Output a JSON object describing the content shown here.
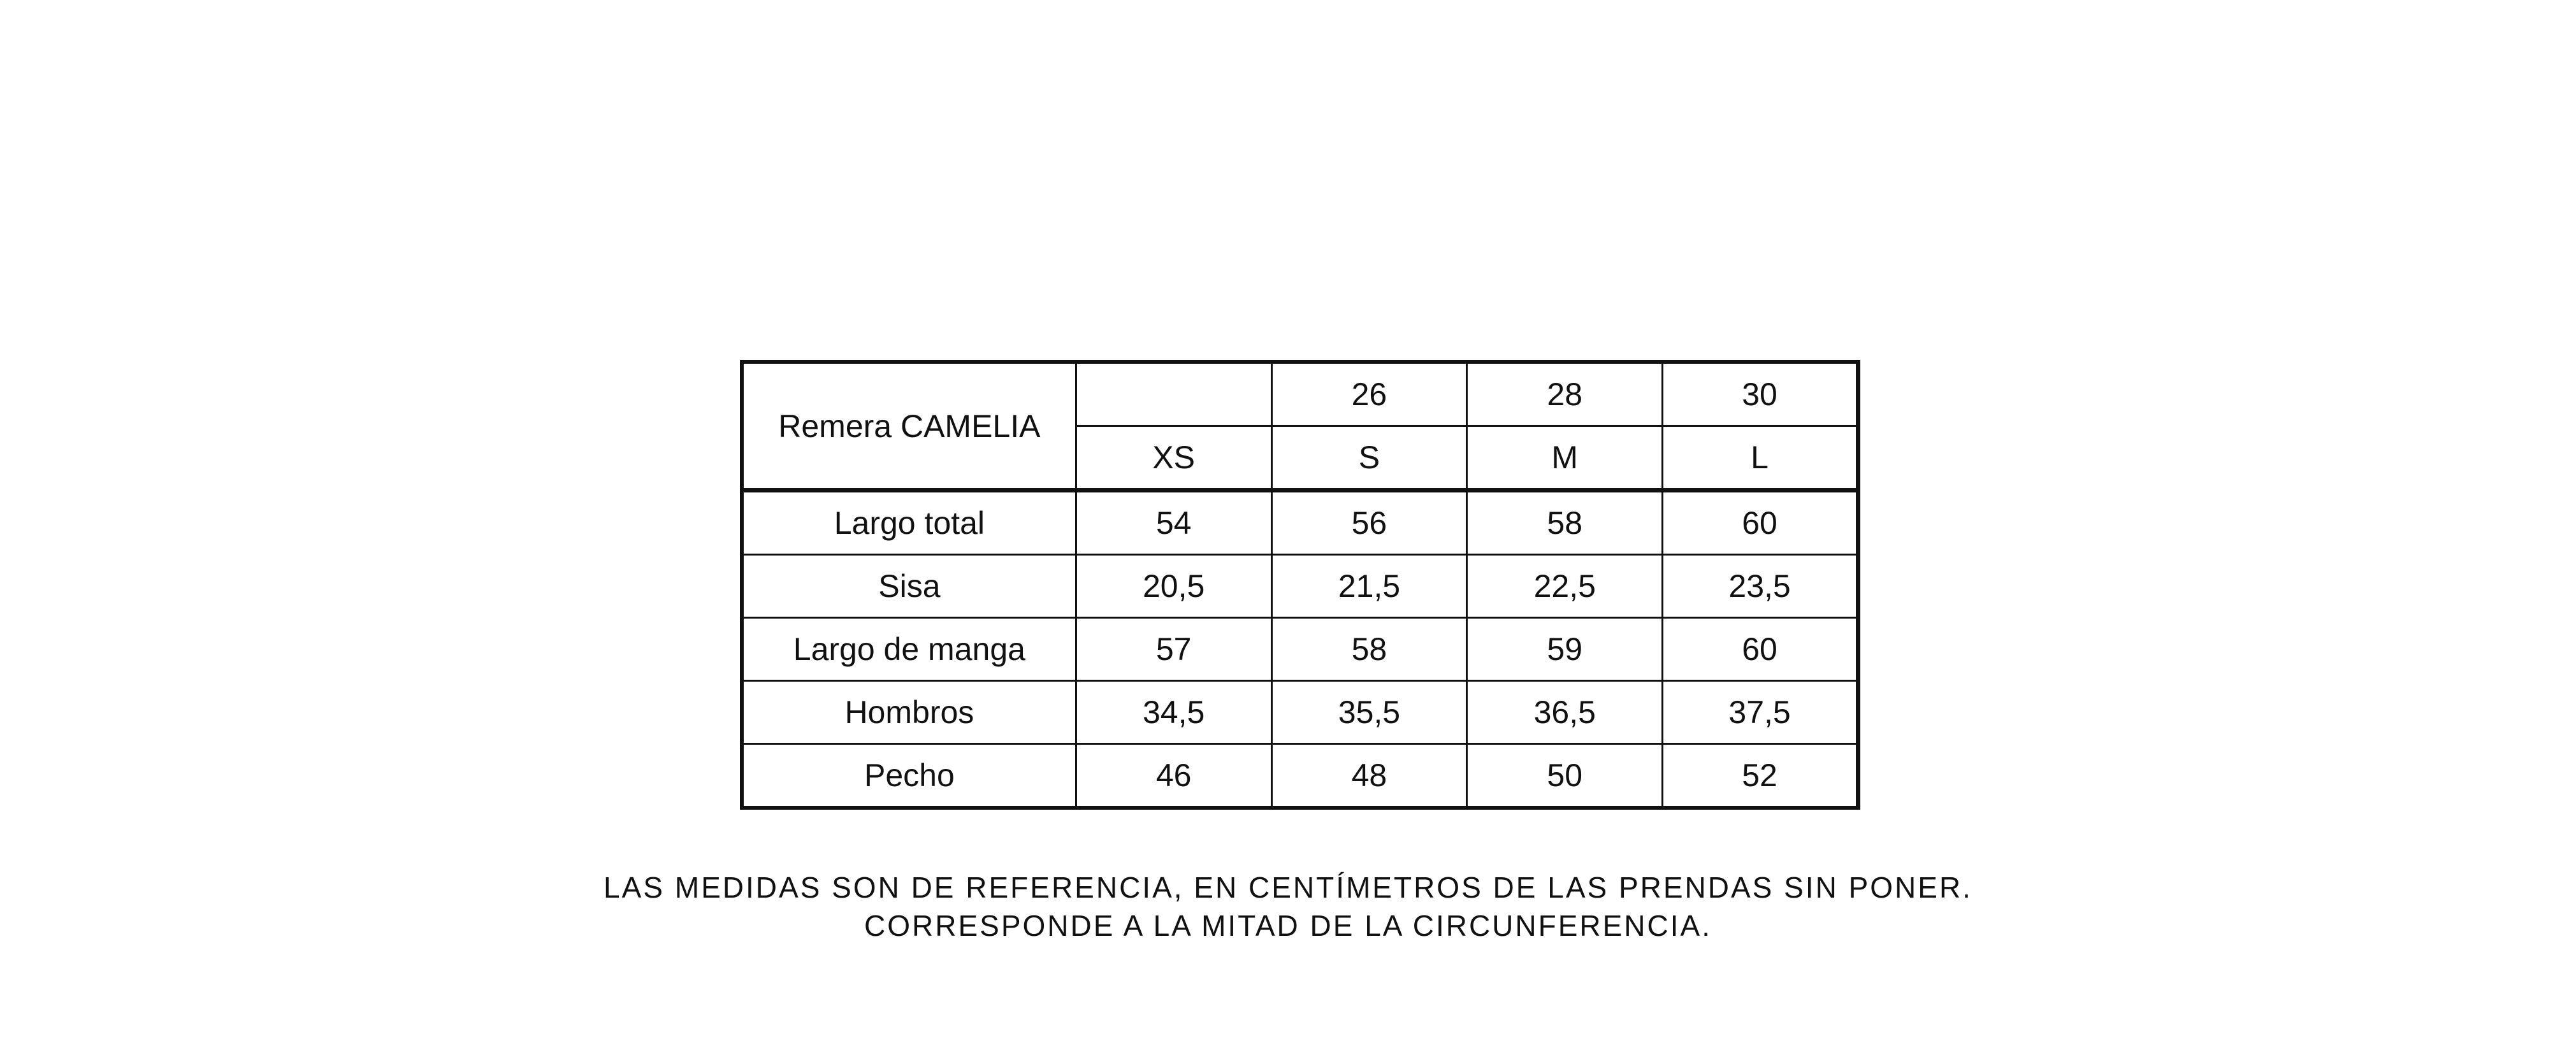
{
  "table": {
    "title": "Remera CAMELIA",
    "numeric_sizes": [
      "",
      "26",
      "28",
      "30"
    ],
    "letter_sizes": [
      "XS",
      "S",
      "M",
      "L"
    ],
    "rows": [
      {
        "label": "Largo total",
        "values": [
          "54",
          "56",
          "58",
          "60"
        ]
      },
      {
        "label": "Sisa",
        "values": [
          "20,5",
          "21,5",
          "22,5",
          "23,5"
        ]
      },
      {
        "label": "Largo de manga",
        "values": [
          "57",
          "58",
          "59",
          "60"
        ]
      },
      {
        "label": "Hombros",
        "values": [
          "34,5",
          "35,5",
          "36,5",
          "37,5"
        ]
      },
      {
        "label": "Pecho",
        "values": [
          "46",
          "48",
          "50",
          "52"
        ]
      }
    ]
  },
  "notes": {
    "line1": "LAS MEDIDAS SON DE REFERENCIA, EN CENTÍMETROS DE LAS PRENDAS SIN PONER.",
    "line2": "CORRESPONDE A LA MITAD DE LA CIRCUNFERENCIA."
  }
}
